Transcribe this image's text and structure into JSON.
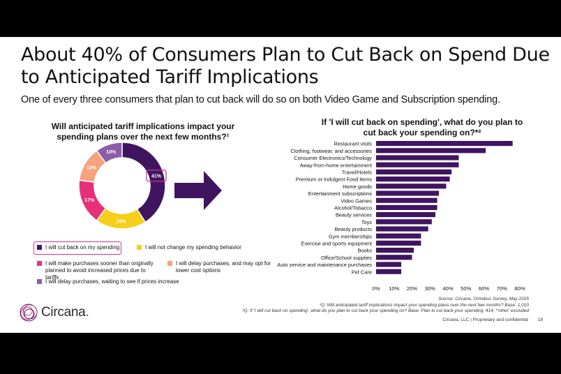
{
  "slide": {
    "title": "About 40% of Consumers Plan to Cut Back on Spend Due to Anticipated Tariff Implications",
    "subtitle": "One of every three consumers that plan to cut back will do so on both Video Game and Subscription spending.",
    "left_question": "Will anticipated tariff implications impact your spending plans over the next few months?¹",
    "right_question": "If 'I will cut back on spending', what do you plan to cut back your spending on?*²",
    "source": "Source: Circana, Omnibus Survey, May 2025",
    "footnote1": "¹Q: Will anticipated tariff implications impact your spending plans over the next few months? Base: 1,010",
    "footnote2": "²Q: If 'I will cut back on spending', what do you plan to cut back your spending on? Base: Plan to cut back your spending, 414; *'other' excluded",
    "footer": "Circana, LLC | Proprietary and confidential",
    "page_number": "18",
    "logo_text": "Circana",
    "logo_dot": "."
  },
  "chart_data": [
    {
      "type": "pie",
      "donut": true,
      "title": "Will anticipated tariff implications impact your spending plans over the next few months?¹",
      "slices": [
        {
          "label": "I will cut back on my spending",
          "value": 41,
          "display": "41%",
          "color": "#3f1560"
        },
        {
          "label": "I will not change my spending behavior",
          "value": 19,
          "display": "19%",
          "color": "#f5cf19"
        },
        {
          "label": "I will make purchases sooner than originally planned to avoid increased prices due to tariffs",
          "value": 17,
          "display": "17%",
          "color": "#e8307a"
        },
        {
          "label": "I will delay purchases, and may opt for lower cost options",
          "value": 13,
          "display": "13%",
          "color": "#f5a27d"
        },
        {
          "label": "I will delay purchases, waiting to see if prices increase",
          "value": 10,
          "display": "10%",
          "color": "#8e5ca8"
        }
      ],
      "highlight": "I will cut back on my spending"
    },
    {
      "type": "bar",
      "orientation": "horizontal",
      "title": "If 'I will cut back on spending', what do you plan to cut back your spending on?*²",
      "categories": [
        "Restaurant visits",
        "Clothing, footwear, and accessories",
        "Consumer Electronics/Technology",
        "Away-from-home entertainment",
        "Travel/Hotels",
        "Premium or Indulgent Food items",
        "Home goods",
        "Entertainment subscriptions",
        "Video Games",
        "Alcohol/Tobacco",
        "Beauty services",
        "Toys",
        "Beauty products",
        "Gym memberships",
        "Exercise and sports equipment",
        "Books",
        "Office/School supplies",
        "Auto service and maintenance purchases",
        "Pet Care"
      ],
      "values": [
        76,
        61,
        46,
        46,
        42,
        41,
        39,
        35,
        34,
        34,
        33,
        31,
        29,
        25,
        25,
        21,
        20,
        14,
        14
      ],
      "xlim": [
        0,
        80
      ],
      "xticks": [
        "0%",
        "10%",
        "20%",
        "30%",
        "40%",
        "50%",
        "60%",
        "70%",
        "80%"
      ],
      "color": "#3f1560",
      "grid": false
    }
  ]
}
